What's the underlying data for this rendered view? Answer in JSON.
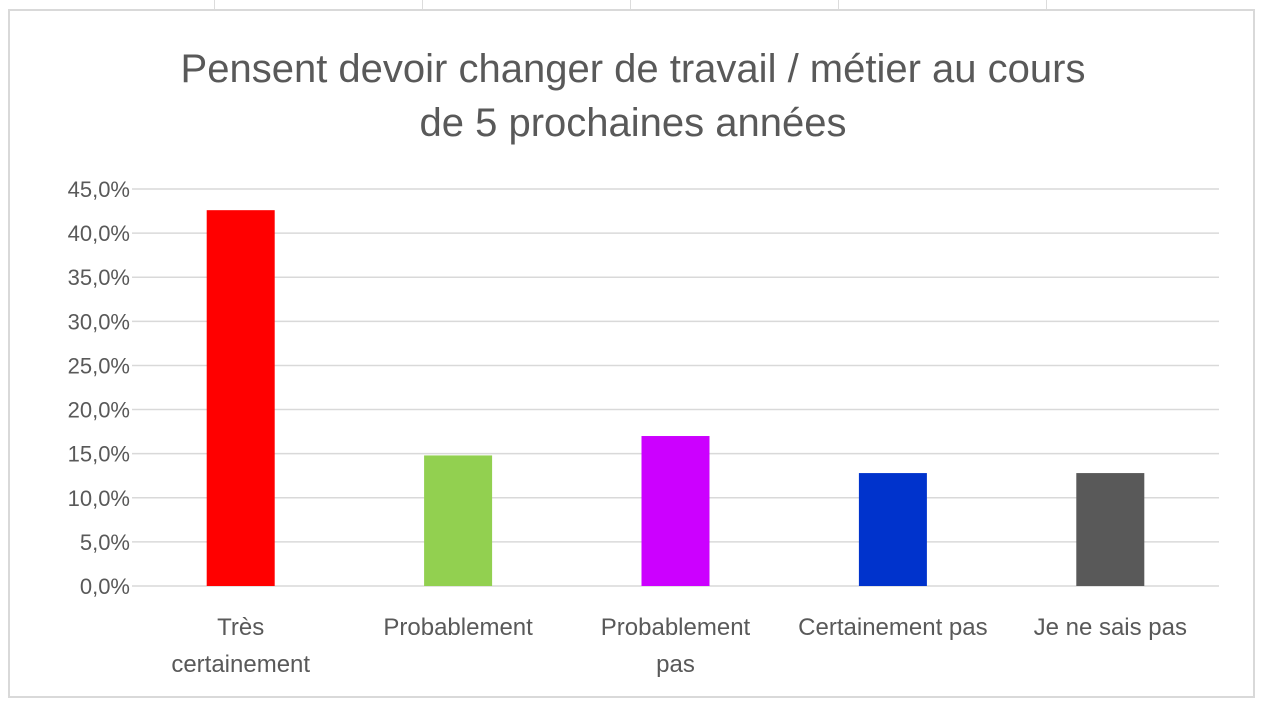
{
  "chart_data": {
    "type": "bar",
    "title_lines": [
      "Pensent devoir changer de travail / métier au cours",
      "de 5 prochaines années"
    ],
    "categories": [
      "Très certainement",
      "Probablement",
      "Probablement pas",
      "Certainement pas",
      "Je ne sais pas"
    ],
    "category_lines": [
      [
        "Très",
        "certainement"
      ],
      [
        "Probablement"
      ],
      [
        "Probablement",
        "pas"
      ],
      [
        "Certainement pas"
      ],
      [
        "Je ne sais pas"
      ]
    ],
    "values": [
      42.6,
      14.8,
      17.0,
      12.8,
      12.8
    ],
    "colors": [
      "#ff0000",
      "#92d050",
      "#cc00ff",
      "#0033cc",
      "#595959"
    ],
    "ylim": [
      0,
      45
    ],
    "yticks": [
      0,
      5,
      10,
      15,
      20,
      25,
      30,
      35,
      40,
      45
    ],
    "ytick_labels": [
      "0,0%",
      "5,0%",
      "10,0%",
      "15,0%",
      "20,0%",
      "25,0%",
      "30,0%",
      "35,0%",
      "40,0%",
      "45,0%"
    ],
    "grid": true,
    "legend": "none",
    "xlabel": "",
    "ylabel": ""
  }
}
